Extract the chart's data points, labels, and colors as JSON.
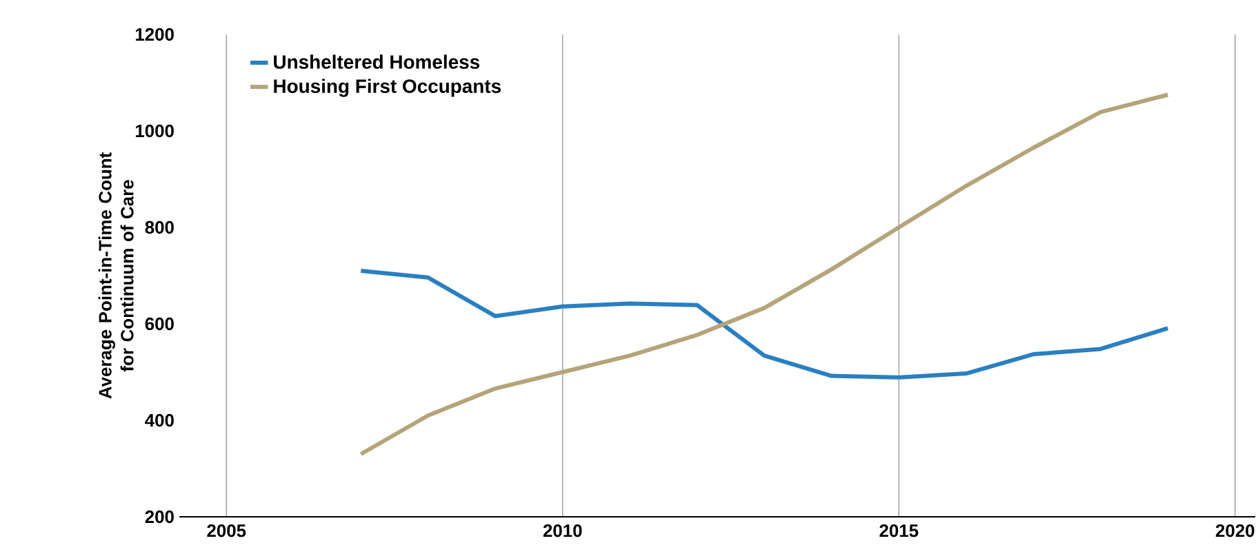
{
  "chart_data": {
    "type": "line",
    "ylabel": "Average Point-in-Time Count for Continuum of Care",
    "x": [
      2007,
      2008,
      2009,
      2010,
      2011,
      2012,
      2013,
      2014,
      2015,
      2016,
      2017,
      2018,
      2019
    ],
    "series": [
      {
        "name": "Unsheltered Homeless",
        "color": "#2a7fc1",
        "values": [
          710,
          696,
          616,
          636,
          642,
          639,
          534,
          492,
          489,
          497,
          537,
          548,
          591
        ]
      },
      {
        "name": "Housing First Occupants",
        "color": "#b5a47a",
        "values": [
          330,
          410,
          466,
          500,
          534,
          577,
          633,
          713,
          800,
          886,
          965,
          1039,
          1075
        ]
      }
    ],
    "xlim": [
      2004.3,
      2020.3
    ],
    "ylim": [
      200,
      1200
    ],
    "xticks": [
      2005,
      2010,
      2015,
      2020
    ],
    "yticks": [
      200,
      400,
      600,
      800,
      1000,
      1200
    ],
    "grid": "x",
    "legend": "top left",
    "marker": "none",
    "line_style": "solid"
  }
}
